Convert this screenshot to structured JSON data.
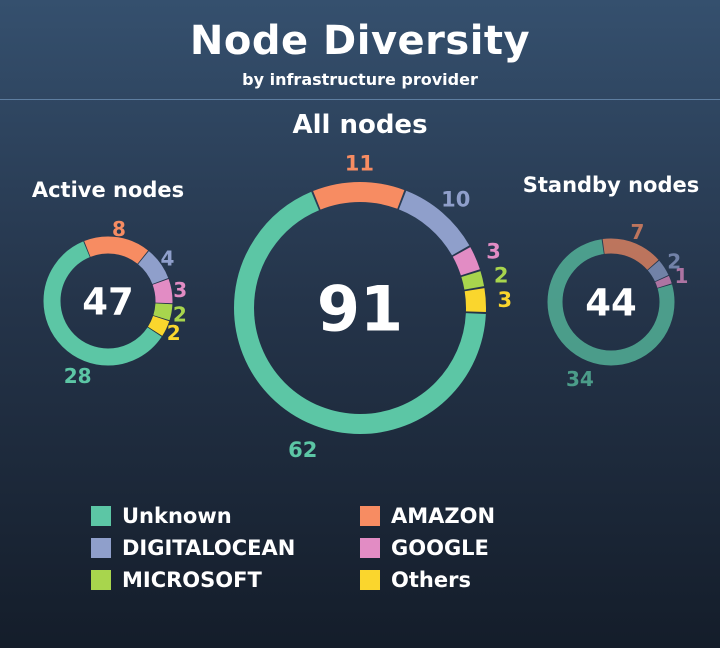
{
  "header": {
    "title": "Node Diversity",
    "subtitle": "by infrastructure provider"
  },
  "colors": {
    "Unknown": "#5cc6a5",
    "AMAZON": "#f78c62",
    "DIGITALOCEAN": "#8f9fcb",
    "GOOGLE": "#e28cc4",
    "MICROSOFT": "#a8d54d",
    "Others": "#fad62d"
  },
  "legend": [
    {
      "name": "Unknown"
    },
    {
      "name": "AMAZON"
    },
    {
      "name": "DIGITALOCEAN"
    },
    {
      "name": "GOOGLE"
    },
    {
      "name": "MICROSOFT"
    },
    {
      "name": "Others"
    }
  ],
  "chart_data": [
    {
      "type": "pie",
      "title": "Active nodes",
      "total": 47,
      "slices": [
        {
          "name": "Unknown",
          "value": 28
        },
        {
          "name": "AMAZON",
          "value": 8
        },
        {
          "name": "DIGITALOCEAN",
          "value": 4
        },
        {
          "name": "GOOGLE",
          "value": 3
        },
        {
          "name": "MICROSOFT",
          "value": 2
        },
        {
          "name": "Others",
          "value": 2
        }
      ]
    },
    {
      "type": "pie",
      "title": "All nodes",
      "total": 91,
      "slices": [
        {
          "name": "Unknown",
          "value": 62
        },
        {
          "name": "AMAZON",
          "value": 11
        },
        {
          "name": "DIGITALOCEAN",
          "value": 10
        },
        {
          "name": "GOOGLE",
          "value": 3
        },
        {
          "name": "MICROSOFT",
          "value": 2
        },
        {
          "name": "Others",
          "value": 3
        }
      ]
    },
    {
      "type": "pie",
      "title": "Standby nodes",
      "total": 44,
      "slices": [
        {
          "name": "Unknown",
          "value": 34
        },
        {
          "name": "AMAZON",
          "value": 7
        },
        {
          "name": "DIGITALOCEAN",
          "value": 2
        },
        {
          "name": "GOOGLE",
          "value": 1
        }
      ]
    }
  ]
}
